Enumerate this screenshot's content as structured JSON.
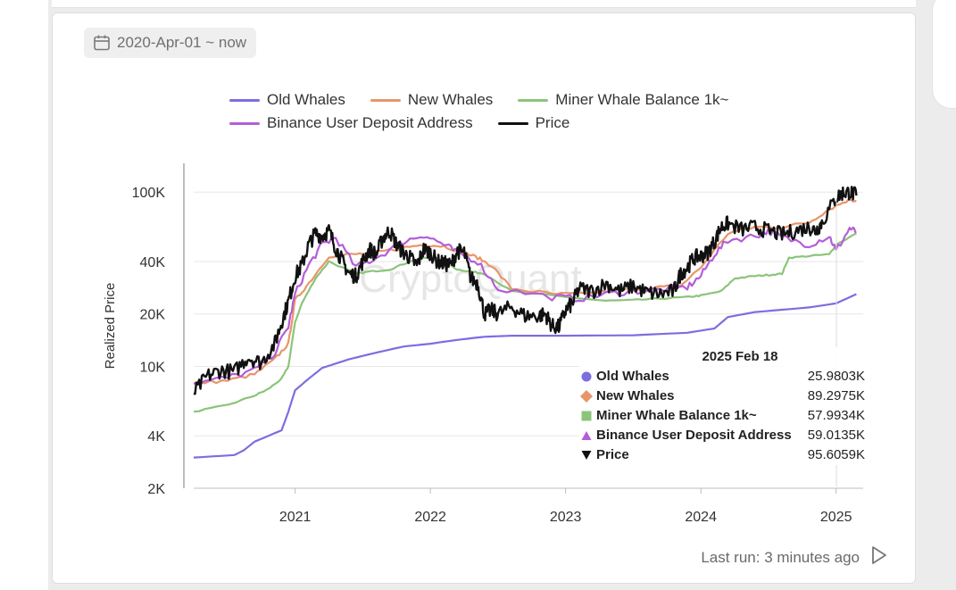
{
  "date_range": "2020-Apr-01 ~ now",
  "footer": {
    "last_run": "Last run: 3 minutes ago"
  },
  "colors": {
    "old_whales": "#7b6ee0",
    "new_whales": "#e8956a",
    "miner": "#8bc47a",
    "binance": "#b45dd8",
    "price": "#111111"
  },
  "tooltip": {
    "date": "2025 Feb 18",
    "rows": [
      {
        "name": "Old Whales",
        "value": "25.9803K",
        "marker": "circle"
      },
      {
        "name": "New Whales",
        "value": "89.2975K",
        "marker": "diamond"
      },
      {
        "name": "Miner Whale Balance 1k~",
        "value": "57.9934K",
        "marker": "square"
      },
      {
        "name": "Binance User Deposit Address",
        "value": "59.0135K",
        "marker": "triangle-up"
      },
      {
        "name": "Price",
        "value": "95.6059K",
        "marker": "triangle-down"
      }
    ]
  },
  "watermark": "CryptoQuant",
  "chart_data": {
    "type": "line",
    "title": "",
    "xlabel": "",
    "ylabel": "Realized Price",
    "yscale": "log",
    "ylim": [
      2000,
      130000
    ],
    "xlim": [
      2020.25,
      2025.2
    ],
    "yticks": [
      {
        "value": 2000,
        "label": "2K"
      },
      {
        "value": 4000,
        "label": "4K"
      },
      {
        "value": 10000,
        "label": "10K"
      },
      {
        "value": 20000,
        "label": "20K"
      },
      {
        "value": 40000,
        "label": "40K"
      },
      {
        "value": 100000,
        "label": "100K"
      }
    ],
    "xticks": [
      {
        "value": 2021.0,
        "label": "2021"
      },
      {
        "value": 2022.0,
        "label": "2022"
      },
      {
        "value": 2023.0,
        "label": "2023"
      },
      {
        "value": 2024.0,
        "label": "2024"
      },
      {
        "value": 2025.0,
        "label": "2025"
      }
    ],
    "series": [
      {
        "name": "Old Whales",
        "key": "old_whales",
        "x": [
          2020.25,
          2020.55,
          2020.62,
          2020.7,
          2020.9,
          2020.95,
          2021.0,
          2021.1,
          2021.2,
          2021.4,
          2021.6,
          2021.8,
          2022.0,
          2022.2,
          2022.4,
          2022.6,
          2023.0,
          2023.5,
          2023.9,
          2024.1,
          2024.2,
          2024.4,
          2024.8,
          2025.0,
          2025.15
        ],
        "values": [
          3000,
          3100,
          3300,
          3700,
          4300,
          5500,
          7300,
          8500,
          9800,
          11000,
          12000,
          13000,
          13500,
          14200,
          14800,
          15000,
          15000,
          15100,
          15600,
          16500,
          19200,
          20500,
          21800,
          23000,
          26000
        ]
      },
      {
        "name": "New Whales",
        "key": "new_whales",
        "x": [
          2020.25,
          2020.5,
          2020.7,
          2020.85,
          2020.95,
          2021.0,
          2021.1,
          2021.25,
          2021.45,
          2021.6,
          2021.8,
          2021.95,
          2022.1,
          2022.25,
          2022.35,
          2022.45,
          2022.6,
          2022.9,
          2023.1,
          2023.3,
          2023.5,
          2023.7,
          2023.85,
          2024.0,
          2024.2,
          2024.4,
          2024.6,
          2024.8,
          2024.95,
          2025.1,
          2025.15
        ],
        "values": [
          8000,
          8300,
          9000,
          11000,
          13500,
          24000,
          30000,
          43000,
          44000,
          45000,
          48000,
          50000,
          49000,
          45000,
          42000,
          38000,
          28000,
          26000,
          26000,
          27000,
          28000,
          28500,
          29000,
          37000,
          58000,
          63000,
          63000,
          67000,
          80000,
          91000,
          89000
        ]
      },
      {
        "name": "Miner Whale Balance 1k~",
        "key": "miner",
        "x": [
          2020.25,
          2020.5,
          2020.7,
          2020.8,
          2020.9,
          2020.95,
          2021.0,
          2021.05,
          2021.15,
          2021.25,
          2021.45,
          2021.55,
          2021.7,
          2021.85,
          2021.95,
          2022.1,
          2022.2,
          2022.3,
          2022.4,
          2022.6,
          2023.0,
          2023.3,
          2023.5,
          2023.7,
          2023.9,
          2024.0,
          2024.15,
          2024.25,
          2024.4,
          2024.5,
          2024.6,
          2024.65,
          2024.8,
          2024.95,
          2025.0,
          2025.15
        ],
        "values": [
          5500,
          6000,
          6800,
          7400,
          8500,
          10000,
          18000,
          23000,
          32000,
          40000,
          34000,
          35000,
          36000,
          40000,
          42000,
          40000,
          36000,
          35000,
          34000,
          27000,
          25000,
          23800,
          24000,
          24500,
          25000,
          25500,
          27000,
          32000,
          33000,
          33500,
          34000,
          42000,
          43000,
          44000,
          50000,
          58000
        ]
      },
      {
        "name": "Binance User Deposit Address",
        "key": "binance",
        "x": [
          2020.25,
          2020.5,
          2020.7,
          2020.85,
          2020.95,
          2021.0,
          2021.1,
          2021.2,
          2021.3,
          2021.45,
          2021.6,
          2021.8,
          2021.95,
          2022.1,
          2022.2,
          2022.35,
          2022.5,
          2022.9,
          2023.1,
          2023.3,
          2023.5,
          2023.7,
          2023.9,
          2024.0,
          2024.1,
          2024.2,
          2024.4,
          2024.5,
          2024.6,
          2024.8,
          2024.95,
          2025.0,
          2025.1,
          2025.15
        ],
        "values": [
          8000,
          8600,
          9500,
          12000,
          17000,
          26000,
          38000,
          50000,
          55000,
          37000,
          42000,
          52000,
          57000,
          50000,
          45000,
          40000,
          28000,
          25000,
          24500,
          26000,
          27000,
          27500,
          28500,
          33000,
          44000,
          53000,
          56000,
          60000,
          55000,
          50000,
          56000,
          46000,
          62000,
          59000
        ]
      },
      {
        "name": "Price",
        "key": "price",
        "x": [
          2020.25,
          2020.35,
          2020.45,
          2020.55,
          2020.65,
          2020.75,
          2020.85,
          2020.9,
          2020.95,
          2021.0,
          2021.05,
          2021.1,
          2021.15,
          2021.2,
          2021.25,
          2021.3,
          2021.35,
          2021.4,
          2021.45,
          2021.5,
          2021.55,
          2021.6,
          2021.65,
          2021.7,
          2021.75,
          2021.8,
          2021.85,
          2021.9,
          2021.95,
          2022.0,
          2022.05,
          2022.1,
          2022.15,
          2022.2,
          2022.25,
          2022.3,
          2022.35,
          2022.4,
          2022.45,
          2022.5,
          2022.6,
          2022.7,
          2022.8,
          2022.85,
          2022.9,
          2022.95,
          2023.0,
          2023.05,
          2023.1,
          2023.2,
          2023.3,
          2023.4,
          2023.5,
          2023.6,
          2023.7,
          2023.8,
          2023.85,
          2023.9,
          2023.95,
          2024.0,
          2024.05,
          2024.1,
          2024.15,
          2024.2,
          2024.3,
          2024.4,
          2024.5,
          2024.6,
          2024.7,
          2024.8,
          2024.85,
          2024.9,
          2025.0,
          2025.05,
          2025.1,
          2025.15
        ],
        "values": [
          7000,
          8800,
          9500,
          9300,
          11300,
          10500,
          13500,
          18000,
          23500,
          33000,
          38000,
          50000,
          58000,
          56000,
          60000,
          48000,
          40000,
          34000,
          33000,
          40000,
          47000,
          44000,
          55000,
          60000,
          50000,
          45000,
          42000,
          38000,
          47000,
          45000,
          40000,
          39000,
          38000,
          46000,
          45000,
          32000,
          30000,
          20000,
          21000,
          20000,
          22000,
          19500,
          19500,
          20000,
          17000,
          16800,
          21000,
          23000,
          28000,
          27000,
          30000,
          27000,
          29000,
          26500,
          26000,
          27000,
          34000,
          37000,
          42000,
          43000,
          45000,
          52000,
          63000,
          66000,
          61000,
          63000,
          60000,
          57000,
          60000,
          63000,
          60000,
          68000,
          93000,
          99000,
          100000,
          95600
        ]
      }
    ]
  }
}
